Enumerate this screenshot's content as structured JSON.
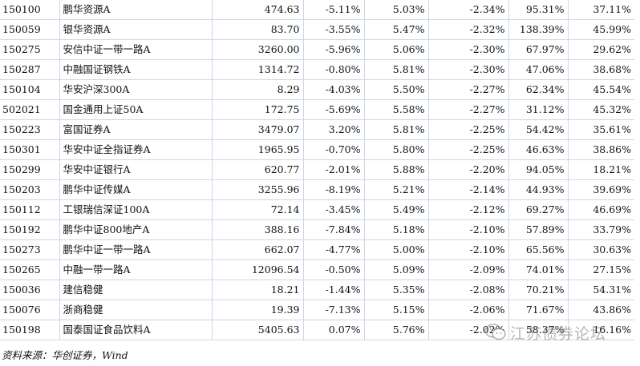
{
  "rows": [
    {
      "code": "150100",
      "name": "鹏华资源A",
      "price": "474.63",
      "c1": "-5.11%",
      "c2": "5.03%",
      "c3": "-2.34%",
      "c4": "95.31%",
      "c5": "37.11%"
    },
    {
      "code": "150059",
      "name": "银华资源A",
      "price": "83.70",
      "c1": "-3.55%",
      "c2": "5.47%",
      "c3": "-2.32%",
      "c4": "138.39%",
      "c5": "45.99%"
    },
    {
      "code": "150275",
      "name": "安信中证一带一路A",
      "price": "3260.00",
      "c1": "-5.96%",
      "c2": "5.06%",
      "c3": "-2.30%",
      "c4": "67.97%",
      "c5": "29.62%"
    },
    {
      "code": "150287",
      "name": "中融国证钢铁A",
      "price": "1314.72",
      "c1": "-0.80%",
      "c2": "5.81%",
      "c3": "-2.30%",
      "c4": "47.06%",
      "c5": "38.68%"
    },
    {
      "code": "150104",
      "name": "华安沪深300A",
      "price": "8.29",
      "c1": "-4.03%",
      "c2": "5.50%",
      "c3": "-2.27%",
      "c4": "62.34%",
      "c5": "45.54%"
    },
    {
      "code": "502021",
      "name": "国金通用上证50A",
      "price": "172.75",
      "c1": "-5.69%",
      "c2": "5.58%",
      "c3": "-2.27%",
      "c4": "31.12%",
      "c5": "45.32%"
    },
    {
      "code": "150223",
      "name": "富国证券A",
      "price": "3479.07",
      "c1": "3.20%",
      "c2": "5.81%",
      "c3": "-2.25%",
      "c4": "54.42%",
      "c5": "35.61%"
    },
    {
      "code": "150301",
      "name": "华安中证全指证券A",
      "price": "1965.95",
      "c1": "-0.70%",
      "c2": "5.80%",
      "c3": "-2.25%",
      "c4": "46.63%",
      "c5": "38.86%"
    },
    {
      "code": "150299",
      "name": "华安中证银行A",
      "price": "620.77",
      "c1": "-2.01%",
      "c2": "5.88%",
      "c3": "-2.20%",
      "c4": "94.05%",
      "c5": "18.21%"
    },
    {
      "code": "150203",
      "name": "鹏华中证传媒A",
      "price": "3255.96",
      "c1": "-8.19%",
      "c2": "5.21%",
      "c3": "-2.14%",
      "c4": "44.93%",
      "c5": "39.69%"
    },
    {
      "code": "150112",
      "name": "工银瑞信深证100A",
      "price": "72.14",
      "c1": "-3.45%",
      "c2": "5.49%",
      "c3": "-2.12%",
      "c4": "69.27%",
      "c5": "46.69%"
    },
    {
      "code": "150192",
      "name": "鹏华中证800地产A",
      "price": "388.16",
      "c1": "-7.84%",
      "c2": "5.18%",
      "c3": "-2.10%",
      "c4": "57.89%",
      "c5": "33.79%"
    },
    {
      "code": "150273",
      "name": "鹏华中证一带一路A",
      "price": "662.07",
      "c1": "-4.77%",
      "c2": "5.00%",
      "c3": "-2.10%",
      "c4": "65.56%",
      "c5": "30.63%"
    },
    {
      "code": "150265",
      "name": "中融一带一路A",
      "price": "12096.54",
      "c1": "-0.50%",
      "c2": "5.09%",
      "c3": "-2.09%",
      "c4": "74.01%",
      "c5": "27.15%"
    },
    {
      "code": "150036",
      "name": "建信稳健",
      "price": "18.21",
      "c1": "-1.44%",
      "c2": "5.35%",
      "c3": "-2.08%",
      "c4": "70.21%",
      "c5": "54.31%"
    },
    {
      "code": "150076",
      "name": "浙商稳健",
      "price": "19.39",
      "c1": "-7.13%",
      "c2": "5.15%",
      "c3": "-2.06%",
      "c4": "71.67%",
      "c5": "43.86%"
    },
    {
      "code": "150198",
      "name": "国泰国证食品饮料A",
      "price": "5405.63",
      "c1": "0.07%",
      "c2": "5.76%",
      "c3": "-2.02%",
      "c4": "58.37%",
      "c5": "16.16%"
    }
  ],
  "source": "资料来源：华创证券，Wind",
  "watermark": "江苏债券论坛",
  "watermark_icon": "wechat-icon",
  "colors": {
    "grid": "#c9d7ea",
    "watermark": "#8a8a8a"
  }
}
